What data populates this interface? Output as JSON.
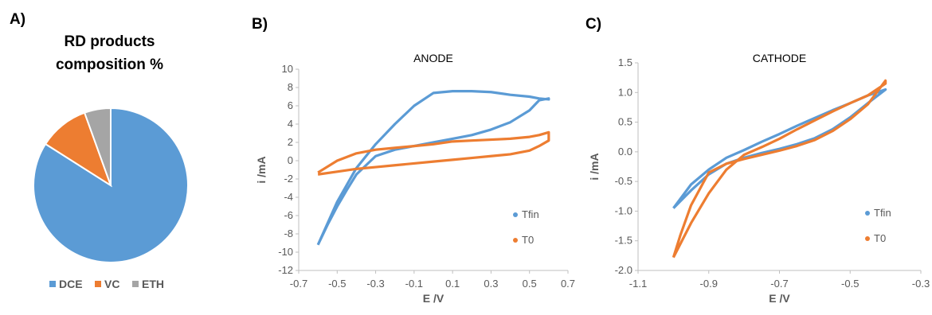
{
  "panels": {
    "a": "A)",
    "b": "B)",
    "c": "C)"
  },
  "colors": {
    "blue": "#5b9bd5",
    "orange": "#ed7d31",
    "gray": "#a5a5a5"
  },
  "chart_data": [
    {
      "type": "pie",
      "title_lines": [
        "RD products",
        "composition %"
      ],
      "categories": [
        "DCE",
        "VC",
        "ETH"
      ],
      "values": [
        84,
        10.5,
        5.5
      ],
      "legend_position": "bottom"
    },
    {
      "type": "line",
      "title": "ANODE",
      "xlabel": "E /V",
      "ylabel": "i /mA",
      "xlim": [
        -0.7,
        0.7
      ],
      "ylim": [
        -12,
        10
      ],
      "xticks": [
        "-0.7",
        "-0.5",
        "-0.3",
        "-0.1",
        "0.1",
        "0.3",
        "0.5",
        "0.7"
      ],
      "yticks": [
        "-12",
        "-10",
        "-8",
        "-6",
        "-4",
        "-2",
        "0",
        "2",
        "4",
        "6",
        "8",
        "10"
      ],
      "legend_position": "bottom-right",
      "series": [
        {
          "name": "Tfin",
          "x": [
            -0.6,
            -0.55,
            -0.5,
            -0.45,
            -0.4,
            -0.3,
            -0.2,
            -0.1,
            0,
            0.1,
            0.2,
            0.3,
            0.4,
            0.5,
            0.55,
            0.6,
            0.6,
            0.55,
            0.5,
            0.4,
            0.3,
            0.2,
            0.1,
            0,
            -0.1,
            -0.2,
            -0.3,
            -0.4,
            -0.5,
            -0.6
          ],
          "y": [
            -9.2,
            -7,
            -5,
            -3.2,
            -1.5,
            0.5,
            1.2,
            1.6,
            2,
            2.4,
            2.8,
            3.4,
            4.2,
            5.5,
            6.6,
            6.8,
            6.7,
            6.8,
            7,
            7.2,
            7.5,
            7.6,
            7.6,
            7.4,
            6,
            4,
            1.8,
            -0.8,
            -4.5,
            -9.2
          ]
        },
        {
          "name": "T0",
          "x": [
            -0.6,
            -0.5,
            -0.4,
            -0.3,
            -0.2,
            -0.1,
            0,
            0.1,
            0.2,
            0.3,
            0.4,
            0.5,
            0.55,
            0.6,
            0.6,
            0.55,
            0.5,
            0.4,
            0.3,
            0.2,
            0.1,
            0,
            -0.1,
            -0.2,
            -0.3,
            -0.4,
            -0.5,
            -0.6
          ],
          "y": [
            -1.5,
            -1.2,
            -0.9,
            -0.7,
            -0.5,
            -0.3,
            -0.1,
            0.1,
            0.3,
            0.5,
            0.7,
            1.1,
            1.6,
            2.2,
            3.1,
            2.8,
            2.6,
            2.4,
            2.3,
            2.2,
            2.1,
            1.8,
            1.6,
            1.4,
            1.2,
            0.8,
            0,
            -1.3
          ]
        }
      ]
    },
    {
      "type": "line",
      "title": "CATHODE",
      "xlabel": "E /V",
      "ylabel": "i /mA",
      "xlim": [
        -1.1,
        -0.3
      ],
      "ylim": [
        -2.0,
        1.5
      ],
      "xticks": [
        "-1.1",
        "-0.9",
        "-0.7",
        "-0.5",
        "-0.3"
      ],
      "yticks": [
        "-2.0",
        "-1.5",
        "-1.0",
        "-0.5",
        "0.0",
        "0.5",
        "1.0",
        "1.5"
      ],
      "legend_position": "bottom-right",
      "series": [
        {
          "name": "Tfin",
          "x": [
            -1.0,
            -0.95,
            -0.9,
            -0.85,
            -0.8,
            -0.75,
            -0.7,
            -0.65,
            -0.6,
            -0.55,
            -0.5,
            -0.45,
            -0.4,
            -0.4,
            -0.45,
            -0.5,
            -0.55,
            -0.6,
            -0.65,
            -0.7,
            -0.75,
            -0.8,
            -0.85,
            -0.9,
            -0.95,
            -1.0
          ],
          "y": [
            -0.95,
            -0.65,
            -0.38,
            -0.2,
            -0.1,
            -0.02,
            0.05,
            0.13,
            0.23,
            0.38,
            0.58,
            0.82,
            1.05,
            1.05,
            0.95,
            0.82,
            0.7,
            0.57,
            0.44,
            0.3,
            0.17,
            0.03,
            -0.1,
            -0.3,
            -0.55,
            -0.95
          ]
        },
        {
          "name": "T0",
          "x": [
            -1.0,
            -0.98,
            -0.95,
            -0.9,
            -0.85,
            -0.8,
            -0.75,
            -0.7,
            -0.65,
            -0.6,
            -0.55,
            -0.5,
            -0.45,
            -0.4,
            -0.4,
            -0.45,
            -0.5,
            -0.55,
            -0.6,
            -0.65,
            -0.7,
            -0.75,
            -0.8,
            -0.85,
            -0.9,
            -0.95,
            -1.0
          ],
          "y": [
            -1.78,
            -1.4,
            -0.9,
            -0.35,
            -0.2,
            -0.12,
            -0.05,
            0.02,
            0.1,
            0.2,
            0.35,
            0.55,
            0.8,
            1.2,
            1.15,
            0.95,
            0.82,
            0.68,
            0.53,
            0.38,
            0.22,
            0.08,
            -0.05,
            -0.3,
            -0.7,
            -1.2,
            -1.78
          ]
        }
      ]
    }
  ]
}
